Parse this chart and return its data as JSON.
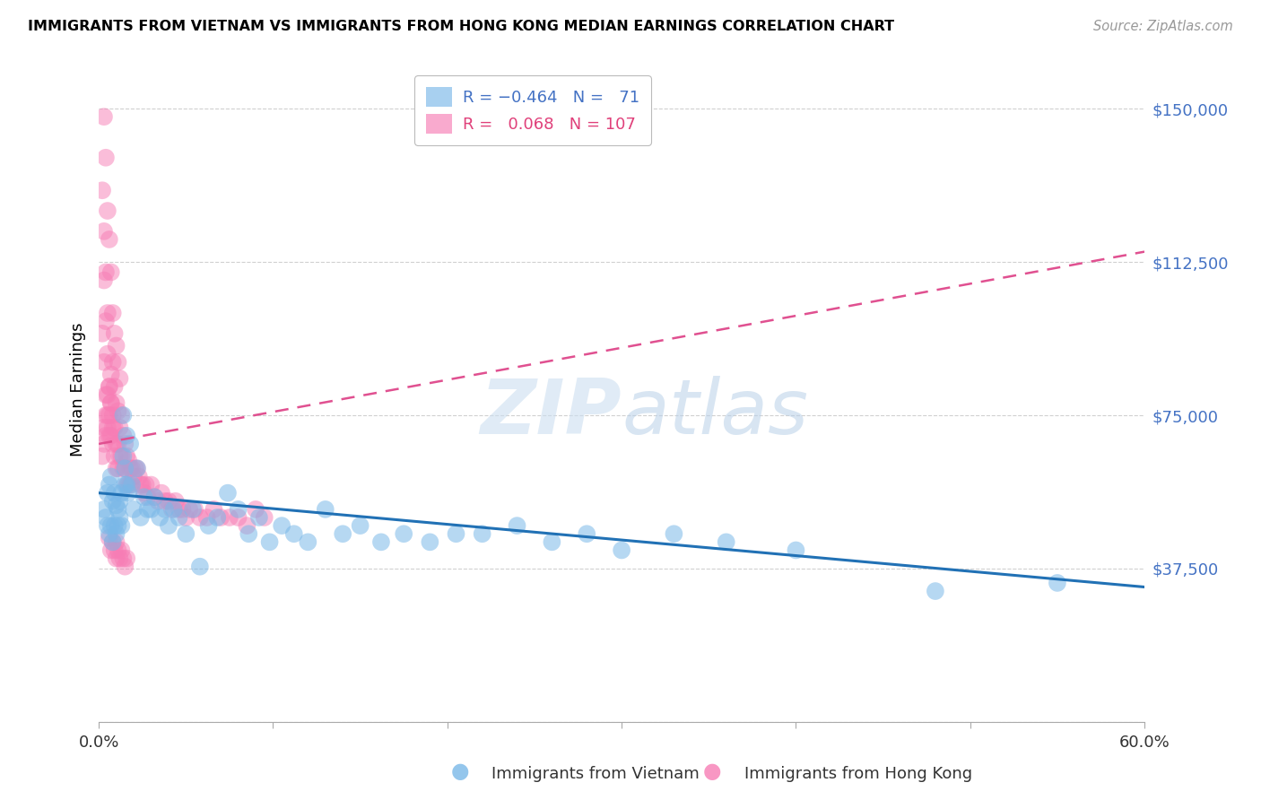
{
  "title": "IMMIGRANTS FROM VIETNAM VS IMMIGRANTS FROM HONG KONG MEDIAN EARNINGS CORRELATION CHART",
  "source": "Source: ZipAtlas.com",
  "ylabel": "Median Earnings",
  "yticks": [
    0,
    37500,
    75000,
    112500,
    150000
  ],
  "ytick_labels": [
    "",
    "$37,500",
    "$75,000",
    "$112,500",
    "$150,000"
  ],
  "xlim": [
    0.0,
    0.6
  ],
  "ylim": [
    0,
    162500
  ],
  "color_vietnam": "#7ab8e8",
  "color_hongkong": "#f77db5",
  "color_trendline_vietnam": "#2171b5",
  "color_trendline_hongkong": "#e05090",
  "watermark_zip": "ZIP",
  "watermark_atlas": "atlas",
  "vietnam_x": [
    0.003,
    0.004,
    0.005,
    0.005,
    0.006,
    0.006,
    0.007,
    0.007,
    0.008,
    0.008,
    0.009,
    0.009,
    0.01,
    0.01,
    0.011,
    0.011,
    0.012,
    0.012,
    0.013,
    0.013,
    0.014,
    0.014,
    0.015,
    0.015,
    0.016,
    0.016,
    0.017,
    0.018,
    0.019,
    0.02,
    0.022,
    0.024,
    0.026,
    0.028,
    0.03,
    0.032,
    0.035,
    0.038,
    0.04,
    0.043,
    0.046,
    0.05,
    0.054,
    0.058,
    0.063,
    0.068,
    0.074,
    0.08,
    0.086,
    0.092,
    0.098,
    0.105,
    0.112,
    0.12,
    0.13,
    0.14,
    0.15,
    0.162,
    0.175,
    0.19,
    0.205,
    0.22,
    0.24,
    0.26,
    0.28,
    0.3,
    0.33,
    0.36,
    0.4,
    0.48,
    0.55
  ],
  "vietnam_y": [
    52000,
    50000,
    56000,
    48000,
    58000,
    46000,
    60000,
    48000,
    54000,
    44000,
    56000,
    48000,
    53000,
    46000,
    52000,
    48000,
    54000,
    50000,
    56000,
    48000,
    75000,
    65000,
    58000,
    62000,
    70000,
    58000,
    56000,
    68000,
    58000,
    52000,
    62000,
    50000,
    55000,
    52000,
    52000,
    55000,
    50000,
    52000,
    48000,
    52000,
    50000,
    46000,
    52000,
    38000,
    48000,
    50000,
    56000,
    52000,
    46000,
    50000,
    44000,
    48000,
    46000,
    44000,
    52000,
    46000,
    48000,
    44000,
    46000,
    44000,
    46000,
    46000,
    48000,
    44000,
    46000,
    42000,
    46000,
    44000,
    42000,
    32000,
    34000
  ],
  "hongkong_x": [
    0.002,
    0.003,
    0.003,
    0.004,
    0.004,
    0.005,
    0.005,
    0.006,
    0.006,
    0.007,
    0.007,
    0.007,
    0.008,
    0.008,
    0.008,
    0.009,
    0.009,
    0.009,
    0.01,
    0.01,
    0.01,
    0.011,
    0.011,
    0.011,
    0.012,
    0.012,
    0.013,
    0.013,
    0.014,
    0.014,
    0.015,
    0.015,
    0.016,
    0.016,
    0.017,
    0.017,
    0.018,
    0.018,
    0.019,
    0.02,
    0.021,
    0.022,
    0.023,
    0.024,
    0.025,
    0.026,
    0.027,
    0.028,
    0.03,
    0.032,
    0.034,
    0.036,
    0.038,
    0.04,
    0.042,
    0.044,
    0.046,
    0.048,
    0.05,
    0.052,
    0.055,
    0.058,
    0.062,
    0.066,
    0.07,
    0.075,
    0.08,
    0.085,
    0.09,
    0.095,
    0.003,
    0.004,
    0.005,
    0.006,
    0.007,
    0.008,
    0.009,
    0.01,
    0.011,
    0.012,
    0.003,
    0.004,
    0.005,
    0.006,
    0.007,
    0.008,
    0.002,
    0.003,
    0.004,
    0.005,
    0.002,
    0.003,
    0.004,
    0.005,
    0.006,
    0.006,
    0.007,
    0.008,
    0.009,
    0.01,
    0.01,
    0.011,
    0.012,
    0.013,
    0.014,
    0.015,
    0.016
  ],
  "hongkong_y": [
    65000,
    68000,
    72000,
    70000,
    75000,
    72000,
    80000,
    75000,
    82000,
    78000,
    85000,
    70000,
    88000,
    75000,
    68000,
    82000,
    72000,
    65000,
    78000,
    68000,
    62000,
    76000,
    68000,
    62000,
    72000,
    65000,
    75000,
    65000,
    70000,
    62000,
    68000,
    62000,
    65000,
    58000,
    64000,
    58000,
    62000,
    58000,
    62000,
    60000,
    62000,
    62000,
    60000,
    58000,
    58000,
    56000,
    58000,
    55000,
    58000,
    55000,
    54000,
    56000,
    54000,
    54000,
    52000,
    54000,
    52000,
    52000,
    50000,
    52000,
    52000,
    50000,
    50000,
    52000,
    50000,
    50000,
    50000,
    48000,
    52000,
    50000,
    148000,
    138000,
    125000,
    118000,
    110000,
    100000,
    95000,
    92000,
    88000,
    84000,
    108000,
    98000,
    90000,
    82000,
    78000,
    72000,
    130000,
    120000,
    110000,
    100000,
    95000,
    88000,
    80000,
    75000,
    70000,
    45000,
    42000,
    44000,
    42000,
    44000,
    40000,
    42000,
    40000,
    42000,
    40000,
    38000,
    40000
  ]
}
